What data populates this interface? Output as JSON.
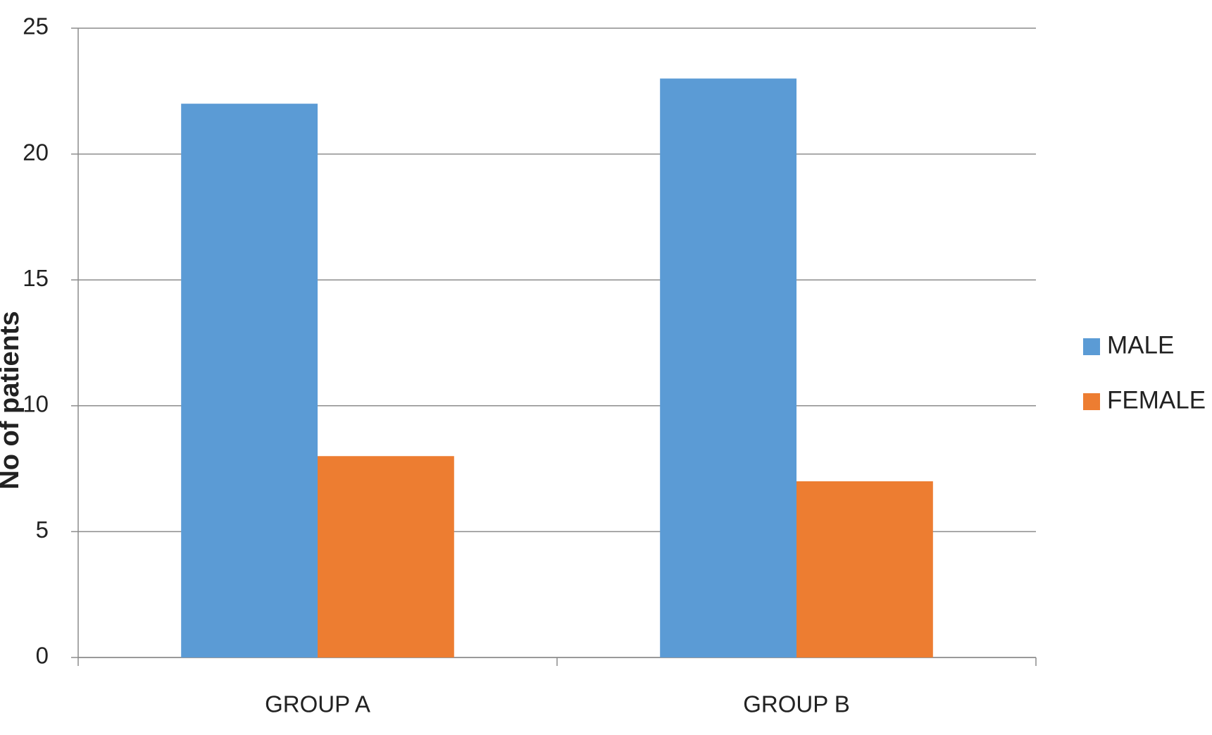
{
  "chart_data": {
    "type": "bar",
    "y_label": "No of patients",
    "categories": [
      "GROUP A",
      "GROUP B"
    ],
    "series": [
      {
        "name": "MALE",
        "color": "#5b9bd5",
        "values": [
          22,
          23
        ]
      },
      {
        "name": "FEMALE",
        "color": "#ed7d31",
        "values": [
          8,
          7
        ]
      }
    ],
    "ylim": [
      0,
      25
    ],
    "yticks": [
      0,
      5,
      10,
      15,
      20,
      25
    ],
    "grid": true,
    "legend": "right"
  }
}
